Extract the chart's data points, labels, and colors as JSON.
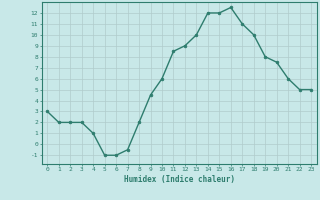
{
  "x": [
    0,
    1,
    2,
    3,
    4,
    5,
    6,
    7,
    8,
    9,
    10,
    11,
    12,
    13,
    14,
    15,
    16,
    17,
    18,
    19,
    20,
    21,
    22,
    23
  ],
  "y": [
    3,
    2,
    2,
    2,
    1,
    -1,
    -1,
    -0.5,
    2,
    4.5,
    6,
    8.5,
    9,
    10,
    12,
    12,
    12.5,
    11,
    10,
    8,
    7.5,
    6,
    5,
    5
  ],
  "xlabel": "Humidex (Indice chaleur)",
  "ylim": [
    -1.8,
    13
  ],
  "xlim": [
    -0.5,
    23.5
  ],
  "line_color": "#2e7d6e",
  "marker_color": "#2e7d6e",
  "bg_color": "#c8e8e8",
  "grid_color": "#b0cccc",
  "spine_color": "#2e7d6e",
  "tick_color": "#2e7d6e",
  "label_color": "#2e7d6e",
  "yticks": [
    -1,
    0,
    1,
    2,
    3,
    4,
    5,
    6,
    7,
    8,
    9,
    10,
    11,
    12
  ],
  "xticks": [
    0,
    1,
    2,
    3,
    4,
    5,
    6,
    7,
    8,
    9,
    10,
    11,
    12,
    13,
    14,
    15,
    16,
    17,
    18,
    19,
    20,
    21,
    22,
    23
  ]
}
